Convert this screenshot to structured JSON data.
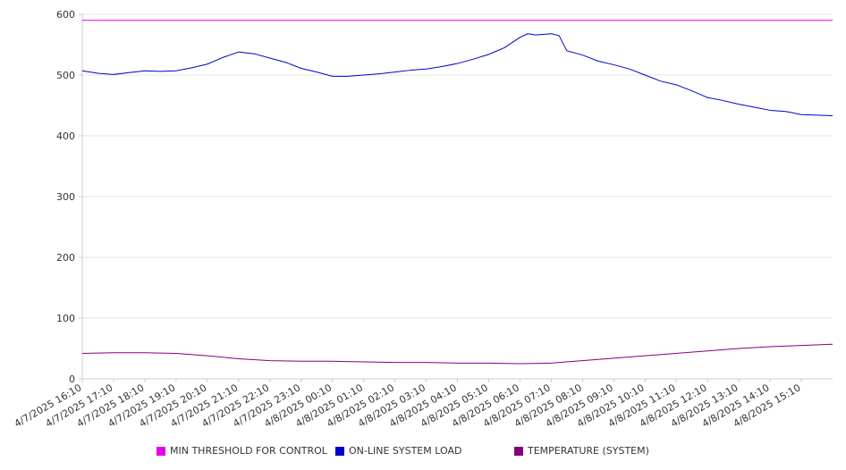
{
  "chart_data": {
    "type": "line",
    "y_ticks": [
      0,
      100,
      200,
      300,
      400,
      500,
      600
    ],
    "ylim": [
      0,
      600
    ],
    "x_tick_labels": [
      "4/7/2025 16:10",
      "4/7/2025 17:10",
      "4/7/2025 18:10",
      "4/7/2025 19:10",
      "4/7/2025 20:10",
      "4/7/2025 21:10",
      "4/7/2025 22:10",
      "4/7/2025 23:10",
      "4/8/2025 00:10",
      "4/8/2025 01:10",
      "4/8/2025 02:10",
      "4/8/2025 03:10",
      "4/8/2025 04:10",
      "4/8/2025 05:10",
      "4/8/2025 06:10",
      "4/8/2025 07:10",
      "4/8/2025 08:10",
      "4/8/2025 09:10",
      "4/8/2025 10:10",
      "4/8/2025 11:10",
      "4/8/2025 12:10",
      "4/8/2025 13:10",
      "4/8/2025 14:10",
      "4/8/2025 15:10"
    ],
    "x_range": [
      "4/7/2025 16:10",
      "4/8/2025 16:10"
    ],
    "grid": true,
    "legend_position": "bottom",
    "series": [
      {
        "name": "MIN THRESHOLD FOR CONTROL",
        "color": "#e600e6",
        "x": [
          "4/7/2025 16:10",
          "4/8/2025 16:10"
        ],
        "values": [
          590,
          590
        ]
      },
      {
        "name": "ON-LINE SYSTEM LOAD",
        "color": "#0000cc",
        "x": [
          "4/7/2025 16:10",
          "4/7/2025 16:40",
          "4/7/2025 17:10",
          "4/7/2025 17:40",
          "4/7/2025 18:10",
          "4/7/2025 18:40",
          "4/7/2025 19:10",
          "4/7/2025 19:40",
          "4/7/2025 20:10",
          "4/7/2025 20:40",
          "4/7/2025 21:10",
          "4/7/2025 21:40",
          "4/7/2025 22:10",
          "4/7/2025 22:40",
          "4/7/2025 23:10",
          "4/7/2025 23:40",
          "4/8/2025 00:10",
          "4/8/2025 00:40",
          "4/8/2025 01:10",
          "4/8/2025 01:40",
          "4/8/2025 02:10",
          "4/8/2025 02:40",
          "4/8/2025 03:10",
          "4/8/2025 03:40",
          "4/8/2025 04:10",
          "4/8/2025 04:40",
          "4/8/2025 05:10",
          "4/8/2025 05:40",
          "4/8/2025 06:10",
          "4/8/2025 06:25",
          "4/8/2025 06:40",
          "4/8/2025 07:10",
          "4/8/2025 07:25",
          "4/8/2025 07:40",
          "4/8/2025 08:10",
          "4/8/2025 08:40",
          "4/8/2025 09:10",
          "4/8/2025 09:40",
          "4/8/2025 10:10",
          "4/8/2025 10:40",
          "4/8/2025 11:10",
          "4/8/2025 11:40",
          "4/8/2025 12:10",
          "4/8/2025 12:40",
          "4/8/2025 13:10",
          "4/8/2025 13:40",
          "4/8/2025 14:10",
          "4/8/2025 14:40",
          "4/8/2025 15:10",
          "4/8/2025 15:40",
          "4/8/2025 16:10"
        ],
        "values": [
          507,
          503,
          501,
          504,
          507,
          506,
          507,
          512,
          518,
          529,
          538,
          535,
          528,
          521,
          511,
          505,
          498,
          498,
          500,
          502,
          505,
          508,
          510,
          514,
          519,
          526,
          534,
          545,
          562,
          568,
          566,
          568,
          565,
          540,
          533,
          523,
          517,
          510,
          500,
          490,
          484,
          474,
          463,
          458,
          452,
          447,
          442,
          440,
          435,
          434,
          433
        ]
      },
      {
        "name": "TEMPERATURE (SYSTEM)",
        "color": "#800080",
        "x": [
          "4/7/2025 16:10",
          "4/7/2025 17:10",
          "4/7/2025 18:10",
          "4/7/2025 19:10",
          "4/7/2025 20:10",
          "4/7/2025 21:10",
          "4/7/2025 22:10",
          "4/7/2025 23:10",
          "4/8/2025 00:10",
          "4/8/2025 01:10",
          "4/8/2025 02:10",
          "4/8/2025 03:10",
          "4/8/2025 04:10",
          "4/8/2025 05:10",
          "4/8/2025 06:10",
          "4/8/2025 07:10",
          "4/8/2025 08:10",
          "4/8/2025 09:10",
          "4/8/2025 10:10",
          "4/8/2025 11:10",
          "4/8/2025 12:10",
          "4/8/2025 13:10",
          "4/8/2025 14:10",
          "4/8/2025 15:10",
          "4/8/2025 16:10"
        ],
        "values": [
          42,
          43,
          43,
          42,
          38,
          33,
          30,
          29,
          29,
          28,
          27,
          27,
          26,
          26,
          25,
          26,
          30,
          34,
          38,
          42,
          46,
          50,
          53,
          55,
          57
        ]
      }
    ]
  }
}
